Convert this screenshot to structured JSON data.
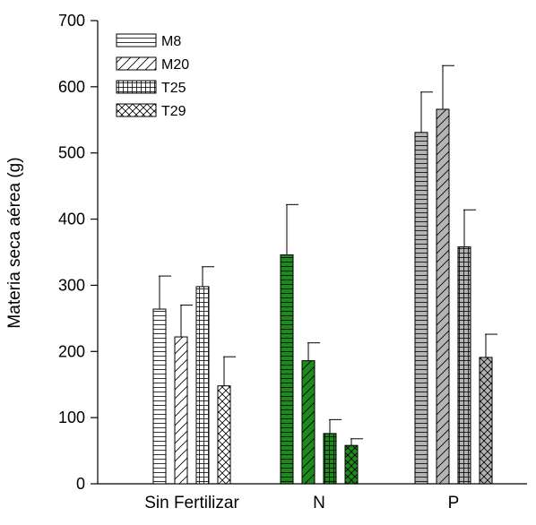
{
  "chart_data": {
    "type": "bar",
    "categories": [
      "Sin Fertilizar",
      "N",
      "P"
    ],
    "series": [
      {
        "name": "M8",
        "pattern": "horizontal-lines",
        "values": [
          264,
          346,
          531
        ],
        "errors": [
          50,
          76,
          61
        ]
      },
      {
        "name": "M20",
        "pattern": "diagonal-lines",
        "values": [
          222,
          186,
          566
        ],
        "errors": [
          48,
          27,
          66
        ]
      },
      {
        "name": "T25",
        "pattern": "grid",
        "values": [
          298,
          76,
          358
        ],
        "errors": [
          30,
          21,
          56
        ]
      },
      {
        "name": "T29",
        "pattern": "crosshatch",
        "values": [
          148,
          58,
          191
        ],
        "errors": [
          44,
          10,
          35
        ]
      }
    ],
    "category_fills": [
      "#ffffff",
      "#1e8a1e",
      "#b4b4b4"
    ],
    "title": "",
    "xlabel": "",
    "ylabel": "Materia seca aérea (g)",
    "ylim": [
      0,
      700
    ],
    "yticks": [
      0,
      100,
      200,
      300,
      400,
      500,
      600,
      700
    ],
    "grid": false,
    "legend_position": "top-left"
  }
}
